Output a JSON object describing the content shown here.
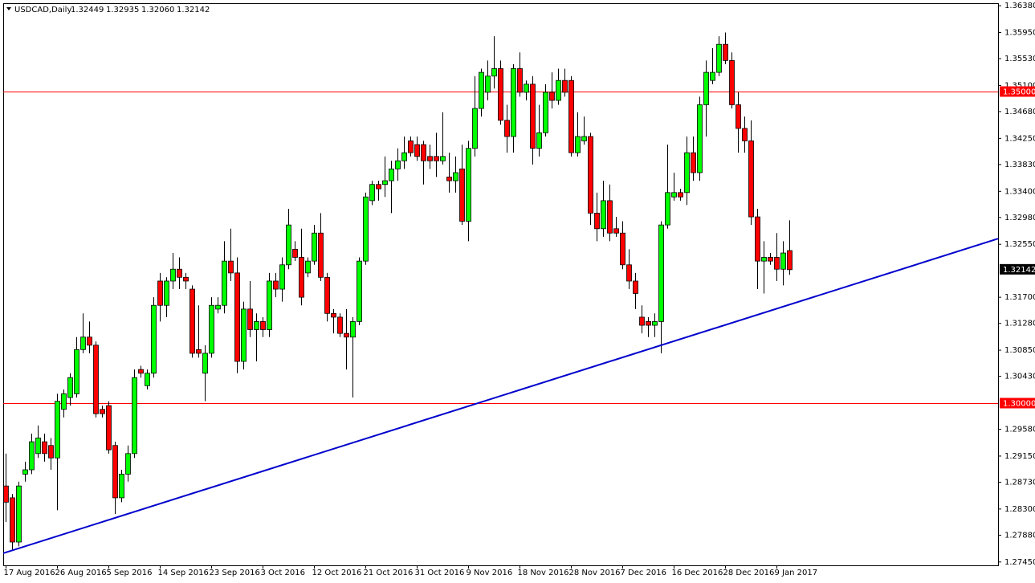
{
  "chart_data": {
    "type": "candlestick",
    "symbol": "USDCAD,Daily",
    "ohlc_labels": [
      "1.32449",
      "1.32935",
      "1.32060",
      "1.32142"
    ],
    "up_color": "#00ff00",
    "down_color": "#ff0000",
    "categories": [
      "17 Aug 2016",
      null,
      null,
      null,
      null,
      null,
      null,
      null,
      "26 Aug 2016",
      null,
      null,
      null,
      null,
      null,
      null,
      null,
      "5 Sep 2016",
      null,
      null,
      null,
      null,
      null,
      null,
      null,
      "14 Sep 2016",
      null,
      null,
      null,
      null,
      null,
      null,
      null,
      "23 Sep 2016",
      null,
      null,
      null,
      null,
      null,
      null,
      null,
      "3 Oct 2016",
      null,
      null,
      null,
      null,
      null,
      null,
      null,
      "12 Oct 2016",
      null,
      null,
      null,
      null,
      null,
      null,
      null,
      "21 Oct 2016",
      null,
      null,
      null,
      null,
      null,
      null,
      null,
      "31 Oct 2016",
      null,
      null,
      null,
      null,
      null,
      null,
      null,
      "9 Nov 2016",
      null,
      null,
      null,
      null,
      null,
      null,
      null,
      "18 Nov 2016",
      null,
      null,
      null,
      null,
      null,
      null,
      null,
      "28 Nov 2016",
      null,
      null,
      null,
      null,
      null,
      null,
      null,
      "7 Dec 2016",
      null,
      null,
      null,
      null,
      null,
      null,
      null,
      "16 Dec 2016",
      null,
      null,
      null,
      null,
      null,
      null,
      null,
      "28 Dec 2016",
      null,
      null,
      null,
      null,
      null,
      null,
      null,
      "9 Jan 2017",
      null,
      null
    ],
    "open": [
      1.2867,
      1.2848,
      1.2777,
      1.2886,
      1.2893,
      1.2919,
      1.2938,
      1.2932,
      1.2912,
      1.299,
      1.3009,
      1.3015,
      1.3086,
      1.3106,
      1.3093,
      1.299,
      1.2996,
      1.2932,
      1.2848,
      1.2886,
      1.2919,
      1.3054,
      1.3028,
      1.3048,
      1.3196,
      1.3157,
      1.3196,
      1.3215,
      1.3202,
      1.3183,
      1.3086,
      1.3048,
      1.308,
      1.3151,
      1.3157,
      1.3228,
      1.3209,
      1.3067,
      1.3151,
      1.3118,
      1.3131,
      1.3118,
      1.3196,
      1.3183,
      1.3222,
      1.3247,
      1.3234,
      1.3209,
      1.3228,
      1.3273,
      1.3202,
      1.3144,
      1.3138,
      1.3112,
      1.3106,
      1.3131,
      1.3228,
      1.3325,
      1.3351,
      1.3351,
      1.3357,
      1.3376,
      1.3389,
      1.3421,
      1.3415,
      1.3415,
      1.3396,
      1.3396,
      1.3389,
      1.3363,
      1.3357,
      1.3376,
      1.3292,
      1.3409,
      1.3473,
      1.3499,
      1.3525,
      1.3537,
      1.3454,
      1.3428,
      1.3537,
      1.3499,
      1.3512,
      1.3409,
      1.3434,
      1.3499,
      1.3486,
      1.3518,
      1.3518,
      1.3402,
      1.3421,
      1.3428,
      1.3305,
      1.328,
      1.3325,
      1.328,
      1.3273,
      1.3222,
      1.3196,
      1.3138,
      1.3131,
      1.3125,
      1.3131,
      1.3286,
      1.3331,
      1.3338,
      1.3338,
      1.3402,
      1.337,
      1.3479,
      1.3518,
      1.3531,
      1.3576,
      1.355,
      1.3479,
      1.3441,
      1.3421,
      1.3299,
      1.3228,
      1.3234,
      1.3234,
      1.3215,
      1.32449
    ],
    "high": [
      1.2919,
      1.2854,
      1.2874,
      1.2906,
      1.2951,
      1.2964,
      1.2951,
      1.2944,
      1.3015,
      1.3022,
      1.3048,
      1.3106,
      1.3144,
      1.3131,
      1.3099,
      1.2996,
      1.3003,
      1.2938,
      1.2893,
      1.2932,
      1.3054,
      1.306,
      1.3054,
      1.317,
      1.3209,
      1.3202,
      1.3241,
      1.3234,
      1.3209,
      1.3189,
      1.3157,
      1.3093,
      1.317,
      1.317,
      1.326,
      1.328,
      1.3234,
      1.3163,
      1.3196,
      1.3144,
      1.3138,
      1.3209,
      1.3209,
      1.3234,
      1.3312,
      1.326,
      1.328,
      1.3234,
      1.3286,
      1.3305,
      1.3209,
      1.3151,
      1.3144,
      1.3151,
      1.3138,
      1.3234,
      1.3338,
      1.3357,
      1.3357,
      1.3396,
      1.3389,
      1.3409,
      1.3428,
      1.3428,
      1.3428,
      1.3421,
      1.3415,
      1.3434,
      1.3467,
      1.3402,
      1.3396,
      1.3415,
      1.3421,
      1.3525,
      1.3537,
      1.355,
      1.3589,
      1.355,
      1.3479,
      1.3544,
      1.3563,
      1.3518,
      1.3525,
      1.3479,
      1.3512,
      1.3531,
      1.3537,
      1.3537,
      1.3525,
      1.3467,
      1.346,
      1.3434,
      1.3338,
      1.3357,
      1.3351,
      1.3299,
      1.3292,
      1.3247,
      1.3209,
      1.3157,
      1.3138,
      1.3144,
      1.3292,
      1.3415,
      1.337,
      1.3344,
      1.3428,
      1.3428,
      1.3492,
      1.355,
      1.357,
      1.3589,
      1.3595,
      1.3563,
      1.3499,
      1.346,
      1.3454,
      1.3312,
      1.326,
      1.3241,
      1.3273,
      1.326,
      1.32935
    ],
    "low": [
      1.2809,
      1.2764,
      1.277,
      1.2874,
      1.2886,
      1.2912,
      1.2906,
      1.2893,
      1.2828,
      1.2977,
      1.2996,
      1.3009,
      1.308,
      1.308,
      1.2977,
      1.2977,
      1.2919,
      1.2822,
      1.2841,
      1.2874,
      1.2912,
      1.3041,
      1.3022,
      1.3041,
      1.3131,
      1.3138,
      1.3183,
      1.3183,
      1.3183,
      1.3073,
      1.3073,
      1.3003,
      1.3073,
      1.3144,
      1.3144,
      1.3196,
      1.3048,
      1.3054,
      1.3106,
      1.3067,
      1.3106,
      1.3106,
      1.317,
      1.3163,
      1.3215,
      1.3228,
      1.3157,
      1.3202,
      1.3222,
      1.3196,
      1.3131,
      1.3112,
      1.3106,
      1.3054,
      1.3009,
      1.3125,
      1.3222,
      1.3318,
      1.3325,
      1.3331,
      1.3305,
      1.3357,
      1.3376,
      1.3396,
      1.3389,
      1.3351,
      1.3376,
      1.3363,
      1.3383,
      1.3338,
      1.3338,
      1.3286,
      1.326,
      1.3396,
      1.346,
      1.3486,
      1.3505,
      1.3447,
      1.3402,
      1.3402,
      1.3492,
      1.3486,
      1.3383,
      1.3396,
      1.3428,
      1.3473,
      1.3479,
      1.3492,
      1.3396,
      1.3396,
      1.3415,
      1.3286,
      1.326,
      1.3267,
      1.326,
      1.3267,
      1.3215,
      1.3183,
      1.3151,
      1.3112,
      1.3106,
      1.3106,
      1.308,
      1.328,
      1.3325,
      1.3325,
      1.3318,
      1.3357,
      1.3357,
      1.3428,
      1.3512,
      1.3525,
      1.3544,
      1.3473,
      1.3402,
      1.3402,
      1.3286,
      1.3183,
      1.3176,
      1.3222,
      1.3196,
      1.3189,
      1.3206
    ],
    "close": [
      1.2841,
      1.2777,
      1.2867,
      1.2893,
      1.2938,
      1.2944,
      1.2919,
      1.2912,
      1.3003,
      1.3015,
      1.3041,
      1.3086,
      1.3106,
      1.3093,
      1.2983,
      1.2983,
      1.2925,
      1.2848,
      1.2886,
      1.2919,
      1.3041,
      1.3048,
      1.3048,
      1.3157,
      1.3157,
      1.3196,
      1.3215,
      1.3202,
      1.3196,
      1.308,
      1.308,
      1.308,
      1.3157,
      1.3157,
      1.3228,
      1.3209,
      1.3067,
      1.3151,
      1.3118,
      1.3131,
      1.3118,
      1.3196,
      1.3183,
      1.3222,
      1.3286,
      1.3234,
      1.317,
      1.3228,
      1.3273,
      1.3202,
      1.3144,
      1.3138,
      1.3112,
      1.3106,
      1.3131,
      1.3228,
      1.3331,
      1.3351,
      1.3344,
      1.3357,
      1.3376,
      1.3389,
      1.3402,
      1.3402,
      1.3396,
      1.3389,
      1.3389,
      1.3389,
      1.3396,
      1.3357,
      1.337,
      1.3292,
      1.3409,
      1.3473,
      1.3531,
      1.3525,
      1.3537,
      1.3454,
      1.3428,
      1.3537,
      1.3499,
      1.3512,
      1.3409,
      1.3434,
      1.3499,
      1.3486,
      1.3518,
      1.3499,
      1.3402,
      1.3428,
      1.3428,
      1.3305,
      1.328,
      1.3325,
      1.3273,
      1.3273,
      1.3222,
      1.3196,
      1.3176,
      1.3125,
      1.3125,
      1.3131,
      1.3286,
      1.3338,
      1.3338,
      1.3331,
      1.3402,
      1.337,
      1.3479,
      1.3531,
      1.3531,
      1.3576,
      1.355,
      1.3479,
      1.3441,
      1.3421,
      1.3299,
      1.3228,
      1.3234,
      1.3228,
      1.3215,
      1.3241,
      1.32142
    ],
    "ylim": [
      1.27396,
      1.3642
    ],
    "yticks": [
      {
        "value": 1.3638,
        "label": "1.36380"
      },
      {
        "value": 1.3595,
        "label": "1.35950"
      },
      {
        "value": 1.3553,
        "label": "1.35530"
      },
      {
        "value": 1.351,
        "label": "1.35100"
      },
      {
        "value": 1.3468,
        "label": "1.34680"
      },
      {
        "value": 1.3425,
        "label": "1.34250"
      },
      {
        "value": 1.3383,
        "label": "1.33830"
      },
      {
        "value": 1.334,
        "label": "1.33400"
      },
      {
        "value": 1.3298,
        "label": "1.32980"
      },
      {
        "value": 1.3255,
        "label": "1.32550"
      },
      {
        "value": 1.317,
        "label": "1.31700"
      },
      {
        "value": 1.3128,
        "label": "1.31280"
      },
      {
        "value": 1.3085,
        "label": "1.30850"
      },
      {
        "value": 1.3043,
        "label": "1.30430"
      },
      {
        "value": 1.2958,
        "label": "1.29580"
      },
      {
        "value": 1.2915,
        "label": "1.29150"
      },
      {
        "value": 1.2873,
        "label": "1.28730"
      },
      {
        "value": 1.283,
        "label": "1.28300"
      },
      {
        "value": 1.2788,
        "label": "1.27880"
      },
      {
        "value": 1.2745,
        "label": "1.27450"
      }
    ],
    "levels": [
      {
        "value": 1.35,
        "label": "1.35000",
        "color": "#ff0000"
      },
      {
        "value": 1.3,
        "label": "1.30000",
        "color": "#ff0000"
      }
    ],
    "last_price": {
      "value": 1.32142,
      "label": "1.32142"
    },
    "trendline": {
      "color": "#0000cd",
      "values": [
        1.2759,
        1.3264
      ]
    }
  }
}
